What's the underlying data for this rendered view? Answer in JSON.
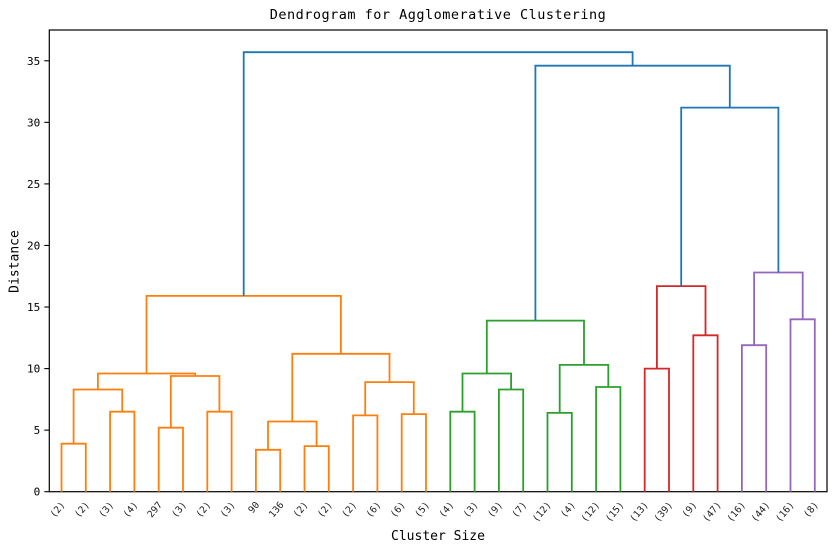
{
  "chart_data": {
    "type": "dendrogram",
    "title": "Dendrogram for Agglomerative Clustering",
    "xlabel": "Cluster Size",
    "ylabel": "Distance",
    "ylim": [
      0,
      37.5
    ],
    "yticks": [
      0,
      5,
      10,
      15,
      20,
      25,
      30,
      35
    ],
    "leaf_labels": [
      "(2)",
      "(2)",
      "(3)",
      "(4)",
      "297",
      "(3)",
      "(2)",
      "(3)",
      "90",
      "136",
      "(2)",
      "(2)",
      "(2)",
      "(6)",
      "(6)",
      "(5)",
      "(4)",
      "(3)",
      "(9)",
      "(7)",
      "(12)",
      "(4)",
      "(12)",
      "(15)",
      "(13)",
      "(39)",
      "(9)",
      "(47)",
      "(16)",
      "(44)",
      "(16)",
      "(8)"
    ],
    "colors": {
      "blue": "#1f77b4",
      "orange": "#ff7f0e",
      "green": "#2ca02c",
      "red": "#d62728",
      "purple": "#9467bd",
      "axis": "#000000",
      "leaf_label": "#1a1a1a"
    },
    "links": [
      {
        "id": "A1",
        "a": "L0",
        "b": "L1",
        "h": 3.9,
        "c": "orange"
      },
      {
        "id": "A2",
        "a": "L2",
        "b": "L3",
        "h": 6.5,
        "c": "orange"
      },
      {
        "id": "A3",
        "a": "A1",
        "b": "A2",
        "h": 8.3,
        "c": "orange"
      },
      {
        "id": "A4",
        "a": "L4",
        "b": "L5",
        "h": 5.2,
        "c": "orange"
      },
      {
        "id": "A5",
        "a": "L6",
        "b": "L7",
        "h": 6.5,
        "c": "orange"
      },
      {
        "id": "A6",
        "a": "A4",
        "b": "A5",
        "h": 9.4,
        "c": "orange"
      },
      {
        "id": "A7",
        "a": "A3",
        "b": "A6",
        "h": 9.6,
        "c": "orange"
      },
      {
        "id": "A8",
        "a": "L8",
        "b": "L9",
        "h": 3.4,
        "c": "orange"
      },
      {
        "id": "A9",
        "a": "L10",
        "b": "L11",
        "h": 3.7,
        "c": "orange"
      },
      {
        "id": "A10",
        "a": "A8",
        "b": "A9",
        "h": 5.7,
        "c": "orange"
      },
      {
        "id": "A11",
        "a": "L12",
        "b": "L13",
        "h": 6.2,
        "c": "orange"
      },
      {
        "id": "A12",
        "a": "L14",
        "b": "L15",
        "h": 6.3,
        "c": "orange"
      },
      {
        "id": "A13",
        "a": "A11",
        "b": "A12",
        "h": 8.9,
        "c": "orange"
      },
      {
        "id": "A14",
        "a": "A10",
        "b": "A13",
        "h": 11.2,
        "c": "orange"
      },
      {
        "id": "A15",
        "a": "A7",
        "b": "A14",
        "h": 15.9,
        "c": "orange"
      },
      {
        "id": "G1",
        "a": "L16",
        "b": "L17",
        "h": 6.5,
        "c": "green"
      },
      {
        "id": "G2",
        "a": "L18",
        "b": "L19",
        "h": 8.3,
        "c": "green"
      },
      {
        "id": "G3",
        "a": "G1",
        "b": "G2",
        "h": 9.6,
        "c": "green"
      },
      {
        "id": "G4",
        "a": "L20",
        "b": "L21",
        "h": 6.4,
        "c": "green"
      },
      {
        "id": "G5",
        "a": "L22",
        "b": "L23",
        "h": 8.5,
        "c": "green"
      },
      {
        "id": "G6",
        "a": "G4",
        "b": "G5",
        "h": 10.3,
        "c": "green"
      },
      {
        "id": "G7",
        "a": "G3",
        "b": "G6",
        "h": 13.9,
        "c": "green"
      },
      {
        "id": "R1",
        "a": "L24",
        "b": "L25",
        "h": 10.0,
        "c": "red"
      },
      {
        "id": "R2",
        "a": "L26",
        "b": "L27",
        "h": 12.7,
        "c": "red"
      },
      {
        "id": "R3",
        "a": "R1",
        "b": "R2",
        "h": 16.7,
        "c": "red"
      },
      {
        "id": "P1",
        "a": "L28",
        "b": "L29",
        "h": 11.9,
        "c": "purple"
      },
      {
        "id": "P2",
        "a": "L30",
        "b": "L31",
        "h": 14.0,
        "c": "purple"
      },
      {
        "id": "P3",
        "a": "P1",
        "b": "P2",
        "h": 17.8,
        "c": "purple"
      },
      {
        "id": "B1",
        "a": "R3",
        "b": "P3",
        "h": 31.2,
        "c": "blue"
      },
      {
        "id": "B2",
        "a": "G7",
        "b": "B1",
        "h": 34.6,
        "c": "blue"
      },
      {
        "id": "B3",
        "a": "A15",
        "b": "B2",
        "h": 35.7,
        "c": "blue"
      }
    ]
  }
}
